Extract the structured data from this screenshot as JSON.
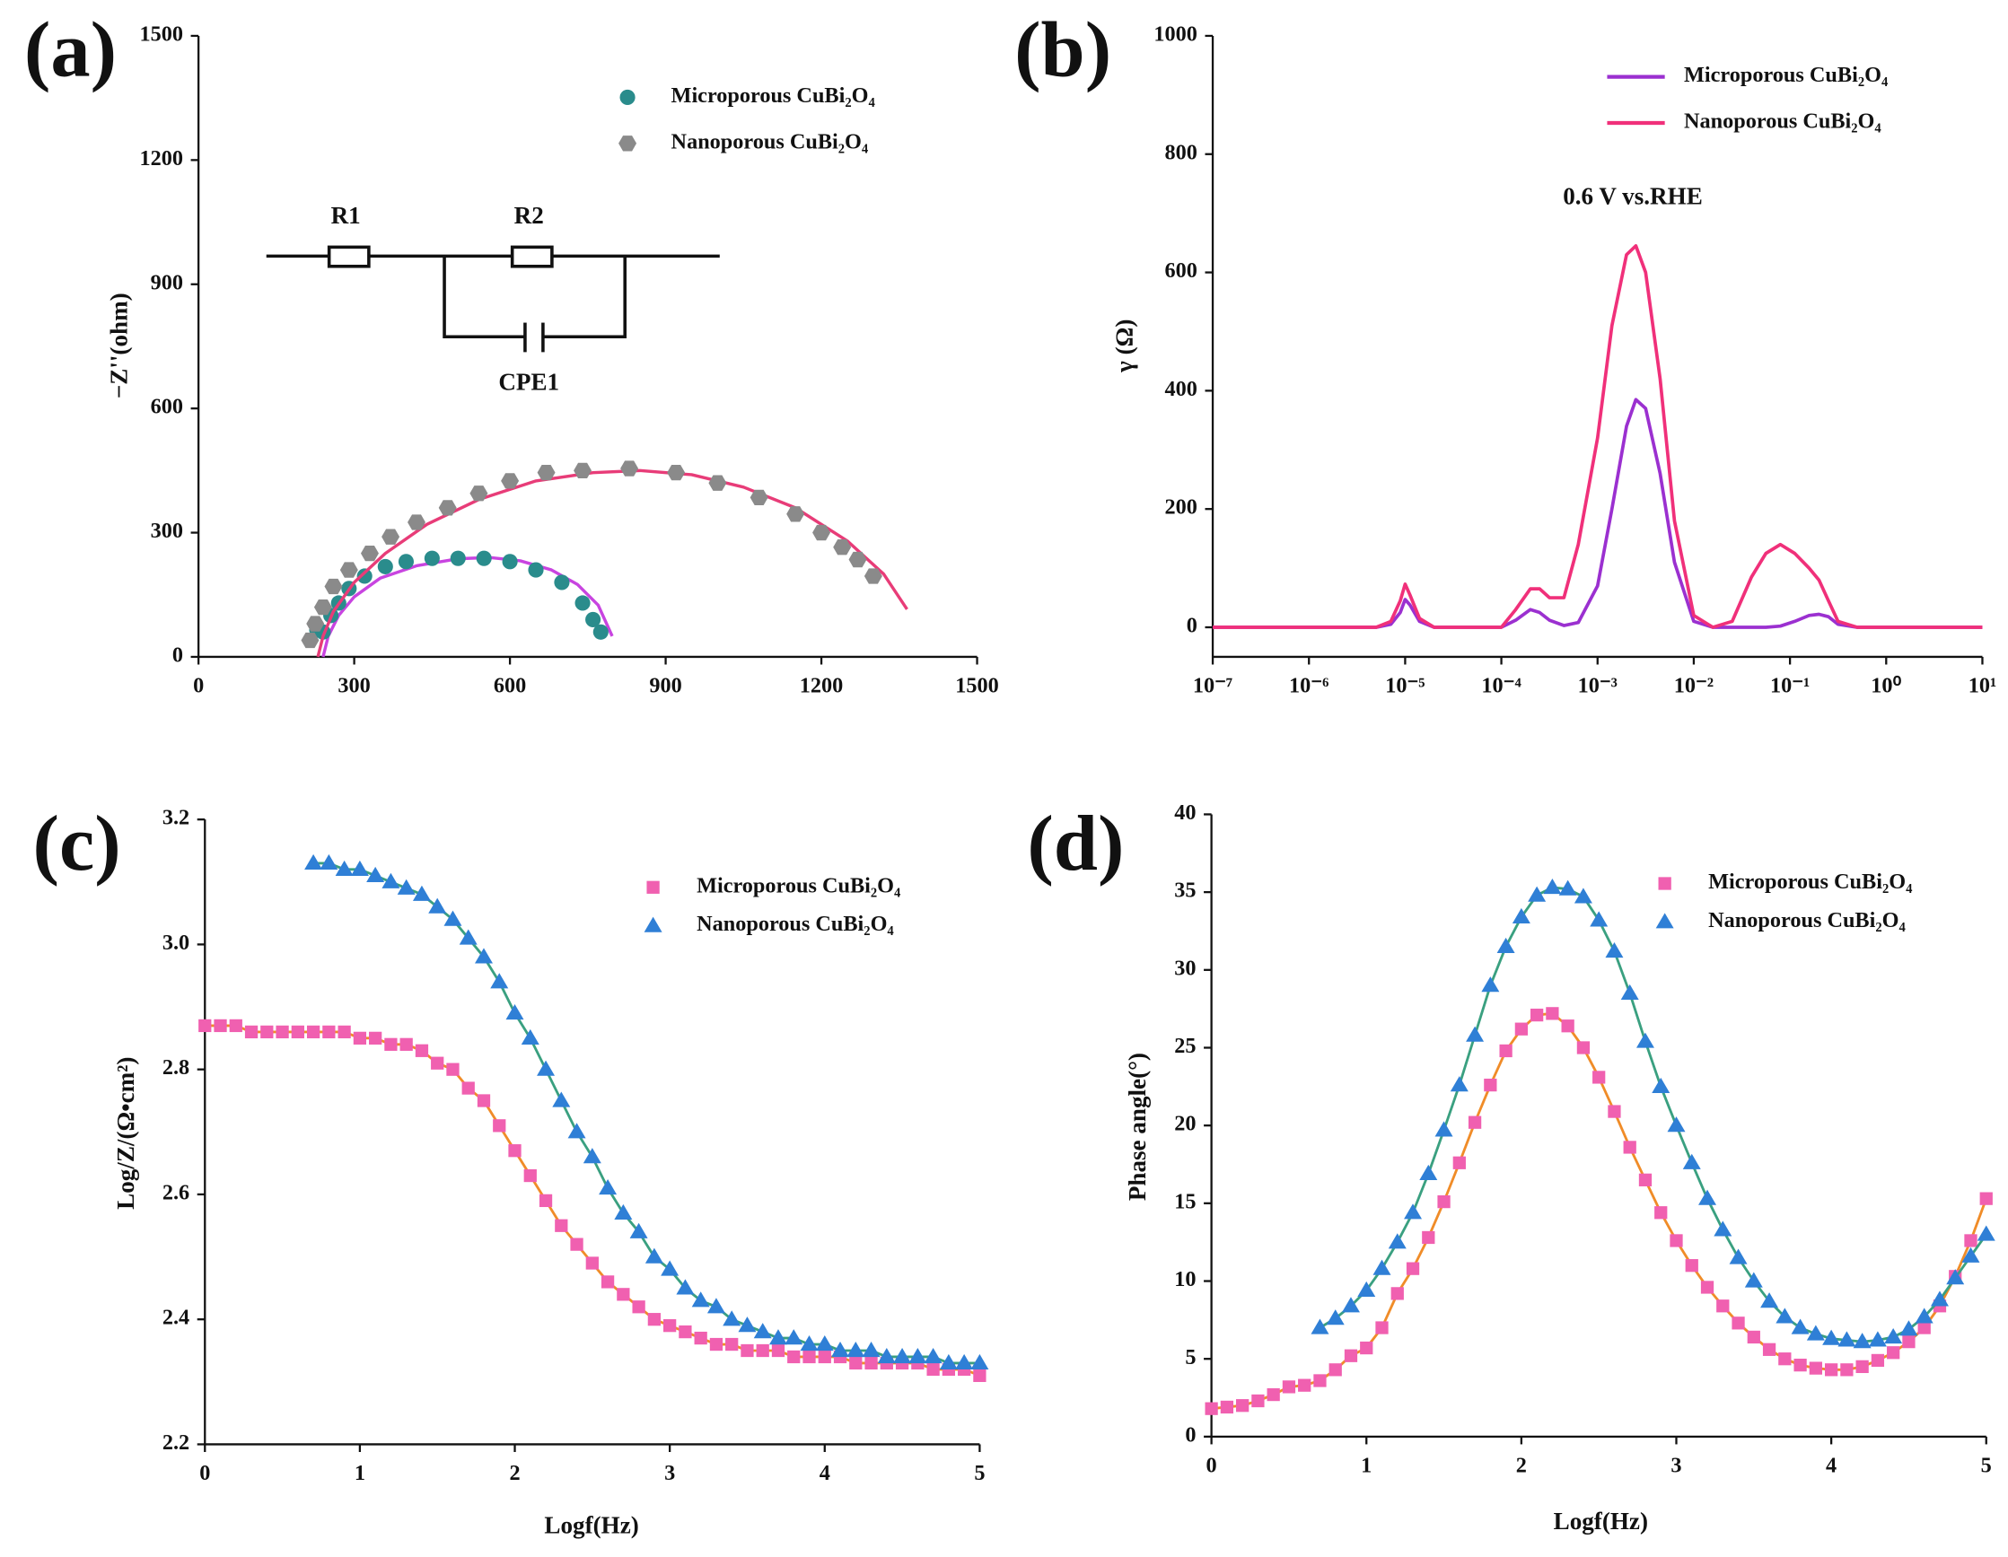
{
  "chart_data": [
    {
      "type": "scatter",
      "panel_label": "(a)",
      "y_label": "−Z''(ohm)",
      "xlim": [
        0,
        1500
      ],
      "xticks": [
        0,
        300,
        600,
        900,
        1200,
        1500
      ],
      "ylim": [
        0,
        1500
      ],
      "yticks": [
        0,
        300,
        600,
        900,
        1200,
        1500
      ],
      "annotations": [
        "R1",
        "R2",
        "CPE1"
      ],
      "series": [
        {
          "name": "Microporous CuBi₂O₄",
          "color": "#2a8c8c",
          "marker": "circle",
          "fit_color": "#c844e0",
          "x": [
            228,
            240,
            255,
            270,
            290,
            320,
            360,
            400,
            450,
            500,
            550,
            600,
            650,
            700,
            740,
            760,
            775
          ],
          "values": [
            65,
            60,
            100,
            130,
            165,
            195,
            218,
            230,
            238,
            238,
            238,
            230,
            210,
            180,
            130,
            90,
            60
          ],
          "fit_x": [
            240,
            250,
            270,
            300,
            350,
            420,
            500,
            560,
            620,
            680,
            730,
            770,
            797
          ],
          "fit_values": [
            0,
            50,
            100,
            145,
            190,
            220,
            237,
            240,
            232,
            210,
            175,
            125,
            50
          ]
        },
        {
          "name": "Nanoporous CuBi₂O₄",
          "color": "#8a8a8a",
          "marker": "hexagon",
          "fit_color": "#e83c78",
          "x": [
            215,
            225,
            240,
            260,
            290,
            330,
            370,
            420,
            480,
            540,
            600,
            670,
            740,
            830,
            920,
            1000,
            1080,
            1150,
            1200,
            1240,
            1270,
            1300
          ],
          "values": [
            40,
            80,
            120,
            170,
            210,
            250,
            290,
            325,
            360,
            395,
            425,
            445,
            450,
            455,
            445,
            420,
            385,
            345,
            300,
            265,
            235,
            195
          ],
          "fit_x": [
            230,
            240,
            260,
            300,
            360,
            440,
            540,
            650,
            760,
            850,
            950,
            1050,
            1150,
            1250,
            1320,
            1365
          ],
          "fit_values": [
            0,
            50,
            110,
            180,
            250,
            320,
            380,
            425,
            445,
            450,
            440,
            410,
            360,
            280,
            200,
            115
          ]
        }
      ]
    },
    {
      "type": "line",
      "panel_label": "(b)",
      "y_label": "γ (Ω)",
      "xlog": true,
      "annotations": [
        "0.6 V vs.RHE"
      ],
      "xlim": [
        1e-07,
        10
      ],
      "xticks": [
        {
          "value": 1e-07,
          "label": "10⁻⁷"
        },
        {
          "value": 1e-06,
          "label": "10⁻⁶"
        },
        {
          "value": 1e-05,
          "label": "10⁻⁵"
        },
        {
          "value": 0.0001,
          "label": "10⁻⁴"
        },
        {
          "value": 0.001,
          "label": "10⁻³"
        },
        {
          "value": 0.01,
          "label": "10⁻²"
        },
        {
          "value": 0.1,
          "label": "10⁻¹"
        },
        {
          "value": 1,
          "label": "10⁰"
        },
        {
          "value": 10,
          "label": "10¹"
        }
      ],
      "ylim": [
        -50,
        1000
      ],
      "yticks": [
        0,
        200,
        400,
        600,
        800,
        1000
      ],
      "series": [
        {
          "name": "Microporous CuBi₂O₄",
          "color": "#9b30d0",
          "x": [
            1e-07,
            5e-06,
            7.1e-06,
            8.9e-06,
            1e-05,
            1.12e-05,
            1.41e-05,
            2e-05,
            0.0001,
            0.000141,
            0.0002,
            0.00025,
            0.000316,
            0.000447,
            0.00063,
            0.001,
            0.00141,
            0.002,
            0.0025,
            0.00316,
            0.00447,
            0.0063,
            0.01,
            0.0158,
            0.0251,
            0.0398,
            0.0562,
            0.0794,
            0.112,
            0.158,
            0.2,
            0.251,
            0.316,
            0.5,
            10
          ],
          "values": [
            0,
            0,
            5,
            25,
            47,
            38,
            10,
            0,
            0,
            12,
            30,
            25,
            12,
            3,
            8,
            70,
            200,
            340,
            385,
            370,
            260,
            110,
            10,
            0,
            0,
            0,
            0,
            2,
            10,
            20,
            22,
            18,
            5,
            0,
            0
          ]
        },
        {
          "name": "Nanoporous CuBi₂O₄",
          "color": "#f0307a",
          "x": [
            1e-07,
            5e-06,
            7.1e-06,
            8.9e-06,
            1e-05,
            1.12e-05,
            1.41e-05,
            2e-05,
            0.0001,
            0.000141,
            0.0002,
            0.00025,
            0.000316,
            0.000447,
            0.00063,
            0.001,
            0.00141,
            0.002,
            0.0025,
            0.00316,
            0.00447,
            0.0063,
            0.01,
            0.0158,
            0.0251,
            0.0398,
            0.0562,
            0.0794,
            0.112,
            0.158,
            0.2,
            0.251,
            0.316,
            0.5,
            10
          ],
          "values": [
            0,
            0,
            10,
            45,
            73,
            55,
            15,
            0,
            0,
            30,
            65,
            65,
            50,
            50,
            140,
            320,
            510,
            630,
            645,
            600,
            420,
            180,
            20,
            0,
            10,
            85,
            125,
            140,
            125,
            100,
            80,
            45,
            10,
            0,
            0
          ]
        }
      ]
    },
    {
      "type": "scatter",
      "panel_label": "(c)",
      "x_label": "Logf(Hz)",
      "y_label": "Log/Z/(Ω•cm²)",
      "xlim": [
        0,
        5
      ],
      "xticks": [
        0,
        1,
        2,
        3,
        4,
        5
      ],
      "ylim": [
        2.2,
        3.2
      ],
      "yticks": [
        2.2,
        2.4,
        2.6,
        2.8,
        {
          "value": 3,
          "label": "3.0"
        },
        3.2
      ],
      "series": [
        {
          "name": "Microporous CuBi₂O₄",
          "color": "#f060b0",
          "marker": "square",
          "line_color": "#f08c28",
          "x": [
            0,
            0.1,
            0.2,
            0.3,
            0.4,
            0.5,
            0.6,
            0.7,
            0.8,
            0.9,
            1,
            1.1,
            1.2,
            1.3,
            1.4,
            1.5,
            1.6,
            1.7,
            1.8,
            1.9,
            2,
            2.1,
            2.2,
            2.3,
            2.4,
            2.5,
            2.6,
            2.7,
            2.8,
            2.9,
            3,
            3.1,
            3.2,
            3.3,
            3.4,
            3.5,
            3.6,
            3.7,
            3.8,
            3.9,
            4,
            4.1,
            4.2,
            4.3,
            4.4,
            4.5,
            4.6,
            4.7,
            4.8,
            4.9,
            5
          ],
          "values": [
            2.87,
            2.87,
            2.87,
            2.86,
            2.86,
            2.86,
            2.86,
            2.86,
            2.86,
            2.86,
            2.85,
            2.85,
            2.84,
            2.84,
            2.83,
            2.81,
            2.8,
            2.77,
            2.75,
            2.71,
            2.67,
            2.63,
            2.59,
            2.55,
            2.52,
            2.49,
            2.46,
            2.44,
            2.42,
            2.4,
            2.39,
            2.38,
            2.37,
            2.36,
            2.36,
            2.35,
            2.35,
            2.35,
            2.34,
            2.34,
            2.34,
            2.34,
            2.33,
            2.33,
            2.33,
            2.33,
            2.33,
            2.32,
            2.32,
            2.32,
            2.31
          ]
        },
        {
          "name": "Nanoporous CuBi₂O₄",
          "color": "#2f7fd6",
          "marker": "triangle",
          "line_color": "#3aa080",
          "x": [
            0.7,
            0.8,
            0.9,
            1,
            1.1,
            1.2,
            1.3,
            1.4,
            1.5,
            1.6,
            1.7,
            1.8,
            1.9,
            2,
            2.1,
            2.2,
            2.3,
            2.4,
            2.5,
            2.6,
            2.7,
            2.8,
            2.9,
            3,
            3.1,
            3.2,
            3.3,
            3.4,
            3.5,
            3.6,
            3.7,
            3.8,
            3.9,
            4,
            4.1,
            4.2,
            4.3,
            4.4,
            4.5,
            4.6,
            4.7,
            4.8,
            4.9,
            5
          ],
          "values": [
            3.13,
            3.13,
            3.12,
            3.12,
            3.11,
            3.1,
            3.09,
            3.08,
            3.06,
            3.04,
            3.01,
            2.98,
            2.94,
            2.89,
            2.85,
            2.8,
            2.75,
            2.7,
            2.66,
            2.61,
            2.57,
            2.54,
            2.5,
            2.48,
            2.45,
            2.43,
            2.42,
            2.4,
            2.39,
            2.38,
            2.37,
            2.37,
            2.36,
            2.36,
            2.35,
            2.35,
            2.35,
            2.34,
            2.34,
            2.34,
            2.34,
            2.33,
            2.33,
            2.33
          ]
        }
      ]
    },
    {
      "type": "scatter",
      "panel_label": "(d)",
      "x_label": "Logf(Hz)",
      "y_label": "Phase angle(°)",
      "xlim": [
        0,
        5
      ],
      "xticks": [
        0,
        1,
        2,
        3,
        4,
        5
      ],
      "ylim": [
        0,
        40
      ],
      "yticks": [
        0,
        5,
        10,
        15,
        20,
        25,
        30,
        35,
        40
      ],
      "series": [
        {
          "name": "Microporous CuBi₂O₄",
          "color": "#f060b0",
          "marker": "square",
          "line_color": "#f08c28",
          "x": [
            0,
            0.1,
            0.2,
            0.3,
            0.4,
            0.5,
            0.6,
            0.7,
            0.8,
            0.9,
            1,
            1.1,
            1.2,
            1.3,
            1.4,
            1.5,
            1.6,
            1.7,
            1.8,
            1.9,
            2,
            2.1,
            2.2,
            2.3,
            2.4,
            2.5,
            2.6,
            2.7,
            2.8,
            2.9,
            3,
            3.1,
            3.2,
            3.3,
            3.4,
            3.5,
            3.6,
            3.7,
            3.8,
            3.9,
            4,
            4.1,
            4.2,
            4.3,
            4.4,
            4.5,
            4.6,
            4.7,
            4.8,
            4.9,
            5
          ],
          "values": [
            1.8,
            1.9,
            2,
            2.3,
            2.7,
            3.2,
            3.3,
            3.6,
            4.3,
            5.2,
            5.7,
            7,
            9.2,
            10.8,
            12.8,
            15.1,
            17.6,
            20.2,
            22.6,
            24.8,
            26.2,
            27.1,
            27.2,
            26.4,
            25,
            23.1,
            20.9,
            18.6,
            16.5,
            14.4,
            12.6,
            11,
            9.6,
            8.4,
            7.3,
            6.4,
            5.6,
            5,
            4.6,
            4.4,
            4.3,
            4.3,
            4.5,
            4.9,
            5.4,
            6.1,
            7,
            8.4,
            10.3,
            12.6,
            15.3
          ]
        },
        {
          "name": "Nanoporous CuBi₂O₄",
          "color": "#2f7fd6",
          "marker": "triangle",
          "line_color": "#3aa080",
          "x": [
            0.7,
            0.8,
            0.9,
            1,
            1.1,
            1.2,
            1.3,
            1.4,
            1.5,
            1.6,
            1.7,
            1.8,
            1.9,
            2,
            2.1,
            2.2,
            2.3,
            2.4,
            2.5,
            2.6,
            2.7,
            2.8,
            2.9,
            3,
            3.1,
            3.2,
            3.3,
            3.4,
            3.5,
            3.6,
            3.7,
            3.8,
            3.9,
            4,
            4.1,
            4.2,
            4.3,
            4.4,
            4.5,
            4.6,
            4.7,
            4.8,
            4.9,
            5
          ],
          "values": [
            7,
            7.6,
            8.4,
            9.4,
            10.8,
            12.5,
            14.4,
            16.9,
            19.7,
            22.6,
            25.8,
            29,
            31.5,
            33.4,
            34.8,
            35.3,
            35.2,
            34.7,
            33.2,
            31.2,
            28.5,
            25.4,
            22.5,
            20,
            17.6,
            15.3,
            13.3,
            11.5,
            10,
            8.7,
            7.7,
            7,
            6.6,
            6.3,
            6.2,
            6.1,
            6.2,
            6.4,
            6.9,
            7.7,
            8.8,
            10.2,
            11.6,
            13
          ]
        }
      ]
    }
  ]
}
